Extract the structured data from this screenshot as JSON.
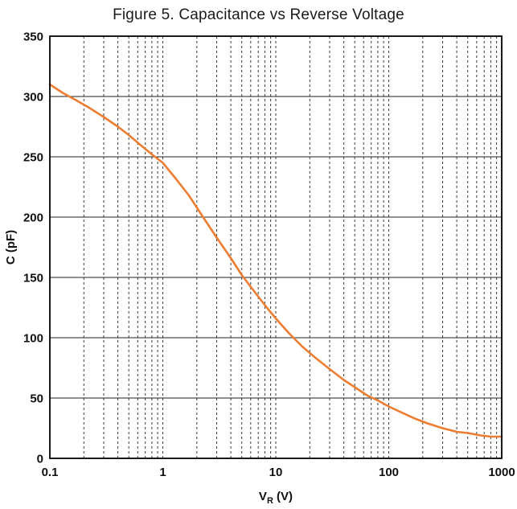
{
  "page": {
    "background": "#ffffff"
  },
  "chart_data": {
    "type": "line",
    "title": "Figure 5. Capacitance vs Reverse Voltage",
    "xlabel": "VR (V)",
    "xlabel_base": "V",
    "xlabel_sub": "R",
    "xlabel_unit": "(V)",
    "ylabel": "C (pF)",
    "x_scale": "log",
    "xlim": [
      0.1,
      1000
    ],
    "ylim": [
      0,
      350
    ],
    "xticks": [
      [
        0.1,
        "0.1"
      ],
      [
        1,
        "1"
      ],
      [
        10,
        "10"
      ],
      [
        100,
        "100"
      ],
      [
        1000,
        "1000"
      ]
    ],
    "yticks": [
      [
        0,
        "0"
      ],
      [
        50,
        "50"
      ],
      [
        100,
        "100"
      ],
      [
        150,
        "150"
      ],
      [
        200,
        "200"
      ],
      [
        250,
        "250"
      ],
      [
        300,
        "300"
      ],
      [
        350,
        "350"
      ]
    ],
    "grid": {
      "vertical": "dashed, at every minor and major log-decade position",
      "horizontal": "solid, at every 50 pF major tick",
      "border": "solid black frame"
    },
    "legend": "none",
    "line_color": "#ED7D31",
    "grid_color": "#3a3a3a",
    "border_color": "#000000",
    "series": [
      {
        "name": "Capacitance vs Reverse Voltage",
        "points": [
          [
            0.1,
            310
          ],
          [
            0.13,
            303
          ],
          [
            0.17,
            297
          ],
          [
            0.22,
            291
          ],
          [
            0.3,
            283
          ],
          [
            0.4,
            275
          ],
          [
            0.5,
            268
          ],
          [
            0.65,
            259
          ],
          [
            0.8,
            252
          ],
          [
            1,
            245
          ],
          [
            1.3,
            232
          ],
          [
            1.7,
            218
          ],
          [
            2.2,
            202
          ],
          [
            3,
            183
          ],
          [
            4,
            166
          ],
          [
            5,
            152
          ],
          [
            6.5,
            138
          ],
          [
            8,
            127
          ],
          [
            10,
            116
          ],
          [
            13,
            104
          ],
          [
            17,
            93
          ],
          [
            22,
            84
          ],
          [
            30,
            74
          ],
          [
            40,
            65
          ],
          [
            50,
            59
          ],
          [
            65,
            52
          ],
          [
            80,
            48
          ],
          [
            100,
            43
          ],
          [
            130,
            38
          ],
          [
            170,
            33
          ],
          [
            220,
            29
          ],
          [
            300,
            25
          ],
          [
            400,
            22
          ],
          [
            500,
            21
          ],
          [
            650,
            19
          ],
          [
            800,
            18
          ],
          [
            1000,
            18
          ]
        ]
      }
    ]
  }
}
